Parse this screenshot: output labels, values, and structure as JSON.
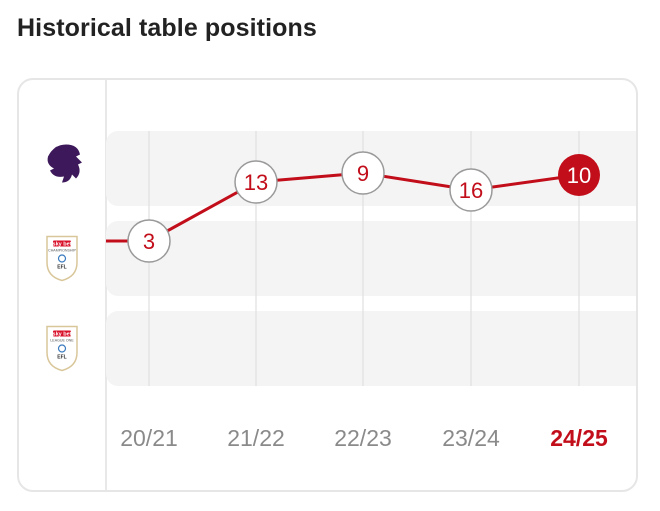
{
  "header": {
    "title": "Historical table positions"
  },
  "leagues": [
    {
      "name": "Premier League",
      "icon": "premier-league-lion-icon",
      "color": "#3d195b"
    },
    {
      "name": "Sky Bet Championship",
      "icon": "efl-championship-icon",
      "banner": "sky bet",
      "sub": "CHAMPIONSHIP",
      "efl": "EFL"
    },
    {
      "name": "Sky Bet League One",
      "icon": "efl-league-one-icon",
      "banner": "sky bet",
      "sub": "LEAGUE ONE",
      "efl": "EFL"
    }
  ],
  "colors": {
    "accent": "#c20e1a",
    "band": "#f4f4f4",
    "grid": "#e0e0e0",
    "tick": "#8a8a8a"
  },
  "chart_data": {
    "type": "line",
    "title": "Historical table positions",
    "categories": [
      "20/21",
      "21/22",
      "22/23",
      "23/24",
      "24/25"
    ],
    "highlight_category": "24/25",
    "series": [
      {
        "points": [
          {
            "season": "20/21",
            "league": 1,
            "position": 3
          },
          {
            "season": "21/22",
            "league": 0,
            "position": 13
          },
          {
            "season": "22/23",
            "league": 0,
            "position": 9
          },
          {
            "season": "23/24",
            "league": 0,
            "position": 16
          },
          {
            "season": "24/25",
            "league": 0,
            "position": 10
          }
        ]
      }
    ],
    "grid": true,
    "legend": "none"
  }
}
